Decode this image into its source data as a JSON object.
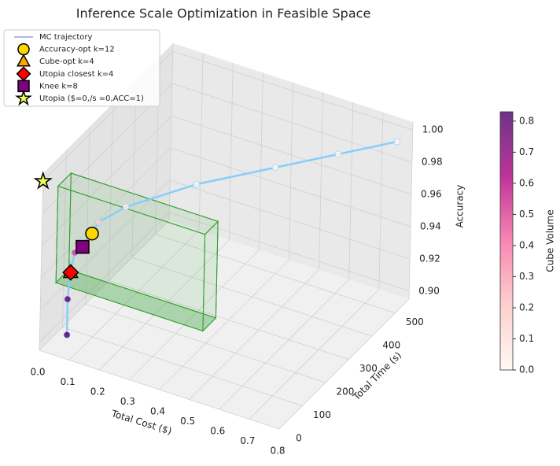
{
  "chart_data": {
    "type": "scatter3d",
    "title": "Inference Scale Optimization in Feasible Space",
    "xlabel": "Total Cost ($)",
    "ylabel": "Total Time (s)",
    "zlabel": "Accuracy",
    "xlim": [
      0,
      0.8
    ],
    "ylim": [
      0,
      560
    ],
    "zlim": [
      0.895,
      1.005
    ],
    "xticks": [
      {
        "value": 0,
        "label": "0.0"
      },
      0.1,
      0.2,
      0.3,
      0.4,
      0.5,
      0.6,
      0.7,
      0.8
    ],
    "yticks": [
      0,
      100,
      200,
      300,
      400,
      500
    ],
    "zticks": [
      {
        "value": 0.9,
        "label": "0.90"
      },
      0.92,
      0.94,
      0.96,
      0.98,
      {
        "value": 1.0,
        "label": "1.00"
      }
    ],
    "trajectory": {
      "name": "MC trajectory",
      "color": "#87cefa",
      "x": [
        0.082,
        0.077,
        0.077,
        0.081,
        0.098,
        0.124,
        0.123,
        0.15,
        0.298,
        0.474,
        0.618,
        0.77
      ],
      "y": [
        11,
        17,
        28,
        39,
        50,
        56,
        84,
        168,
        280,
        392,
        476,
        532
      ],
      "z": [
        0.908,
        0.929,
        0.945,
        0.955,
        0.96,
        0.967,
        0.97,
        0.969,
        0.976,
        0.981,
        0.986,
        0.995
      ],
      "volume": [
        0.8,
        0.75,
        0.65,
        0.5,
        0.4,
        0.3,
        0.15,
        0.05,
        0.02,
        0.01,
        0.01,
        0.01
      ]
    },
    "markers": [
      {
        "name": "Accuracy-opt k=12",
        "shape": "circle",
        "color": "#ffd700",
        "x": 0.124,
        "y": 56,
        "z": 0.967
      },
      {
        "name": "Cube-opt k=4",
        "shape": "triangle",
        "color": "#ffa500",
        "x": 0.077,
        "y": 28,
        "z": 0.944
      },
      {
        "name": "Utopia closest k=4",
        "shape": "diamond",
        "color": "#ff0000",
        "x": 0.077,
        "y": 28,
        "z": 0.944
      },
      {
        "name": "Knee k=8",
        "shape": "square",
        "color": "#800080",
        "x": 0.098,
        "y": 50,
        "z": 0.958
      },
      {
        "name": "Utopia ($=0,/s =0,ACC=1)",
        "shape": "star",
        "color": "#f0ff50",
        "x": 0,
        "y": 0,
        "z": 1.0
      }
    ],
    "feasible_box": {
      "color": "#2ca02c",
      "xlim": [
        0.05,
        0.54
      ],
      "ylim": [
        0,
        56
      ],
      "zlim": [
        0.94,
        1.0
      ]
    },
    "colorbar": {
      "label": "Cube Volume",
      "lim": [
        0,
        0.83
      ],
      "ticks": [
        {
          "value": 0,
          "label": "0.0"
        },
        0.1,
        0.2,
        0.3,
        0.4,
        0.5,
        0.6,
        0.7,
        0.8
      ]
    }
  }
}
